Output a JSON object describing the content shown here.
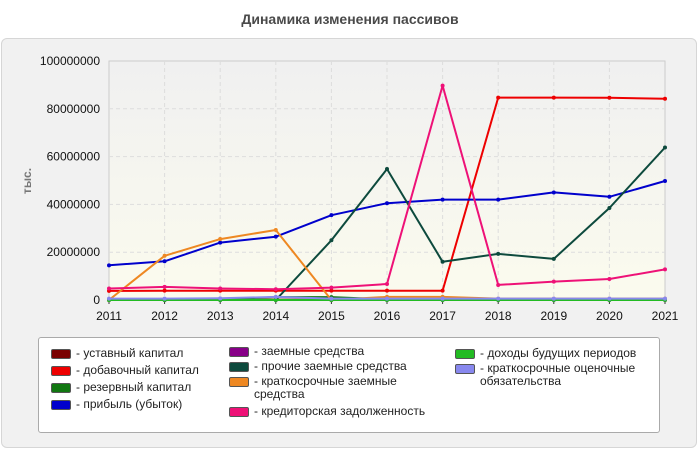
{
  "chart_data": {
    "type": "line",
    "title": "Динамика изменения пассивов",
    "ylabel": "тыс.",
    "xlabel": "",
    "x": [
      2011,
      2012,
      2013,
      2014,
      2015,
      2016,
      2017,
      2018,
      2019,
      2020,
      2021
    ],
    "ylim": [
      0,
      100000000
    ],
    "yticks": [
      "0",
      "20000000",
      "40000000",
      "60000000",
      "80000000",
      "100000000"
    ],
    "grid": true,
    "legend_position": "bottom",
    "series": [
      {
        "name": "уставный капитал",
        "color": "#7a0000",
        "values": [
          100000,
          100000,
          100000,
          100000,
          100000,
          100000,
          100000,
          100000,
          100000,
          100000,
          100000
        ]
      },
      {
        "name": "добавочный капитал",
        "color": "#ee0000",
        "values": [
          3800000,
          3900000,
          3900000,
          3900000,
          3900000,
          3900000,
          3900000,
          84700000,
          84700000,
          84600000,
          84200000
        ]
      },
      {
        "name": "резервный капитал",
        "color": "#117711",
        "values": [
          200000,
          200000,
          200000,
          1200000,
          1200000,
          300000,
          300000,
          300000,
          300000,
          300000,
          300000
        ]
      },
      {
        "name": "прибыль (убыток)",
        "color": "#0000cc",
        "values": [
          14500000,
          16200000,
          24000000,
          26500000,
          35500000,
          40500000,
          42000000,
          42000000,
          45000000,
          43200000,
          49800000
        ]
      },
      {
        "name": "заемные средства",
        "color": "#880088",
        "values": [
          0,
          0,
          0,
          0,
          0,
          0,
          0,
          0,
          0,
          0,
          0
        ]
      },
      {
        "name": "прочие заемные средства",
        "color": "#0d4a3d",
        "values": [
          0,
          0,
          0,
          0,
          25000000,
          54800000,
          16000000,
          19300000,
          17200000,
          38500000,
          63800000
        ]
      },
      {
        "name": "краткосрочные заемные средства",
        "color": "#ee8822",
        "values": [
          0,
          18500000,
          25500000,
          29300000,
          0,
          1300000,
          1300000,
          600000,
          600000,
          600000,
          600000
        ]
      },
      {
        "name": "кредиторская задолженность",
        "color": "#ee1177",
        "values": [
          4800000,
          5500000,
          4800000,
          4500000,
          5200000,
          6700000,
          89700000,
          6300000,
          7700000,
          8800000,
          12800000
        ]
      },
      {
        "name": "доходы будущих периодов",
        "color": "#22bb22",
        "values": [
          0,
          0,
          0,
          0,
          0,
          0,
          0,
          0,
          0,
          0,
          0
        ]
      },
      {
        "name": "краткосрочные оценочные обязательства",
        "color": "#8888ee",
        "values": [
          600000,
          600000,
          700000,
          1300000,
          600000,
          600000,
          600000,
          600000,
          600000,
          600000,
          600000
        ]
      }
    ]
  }
}
